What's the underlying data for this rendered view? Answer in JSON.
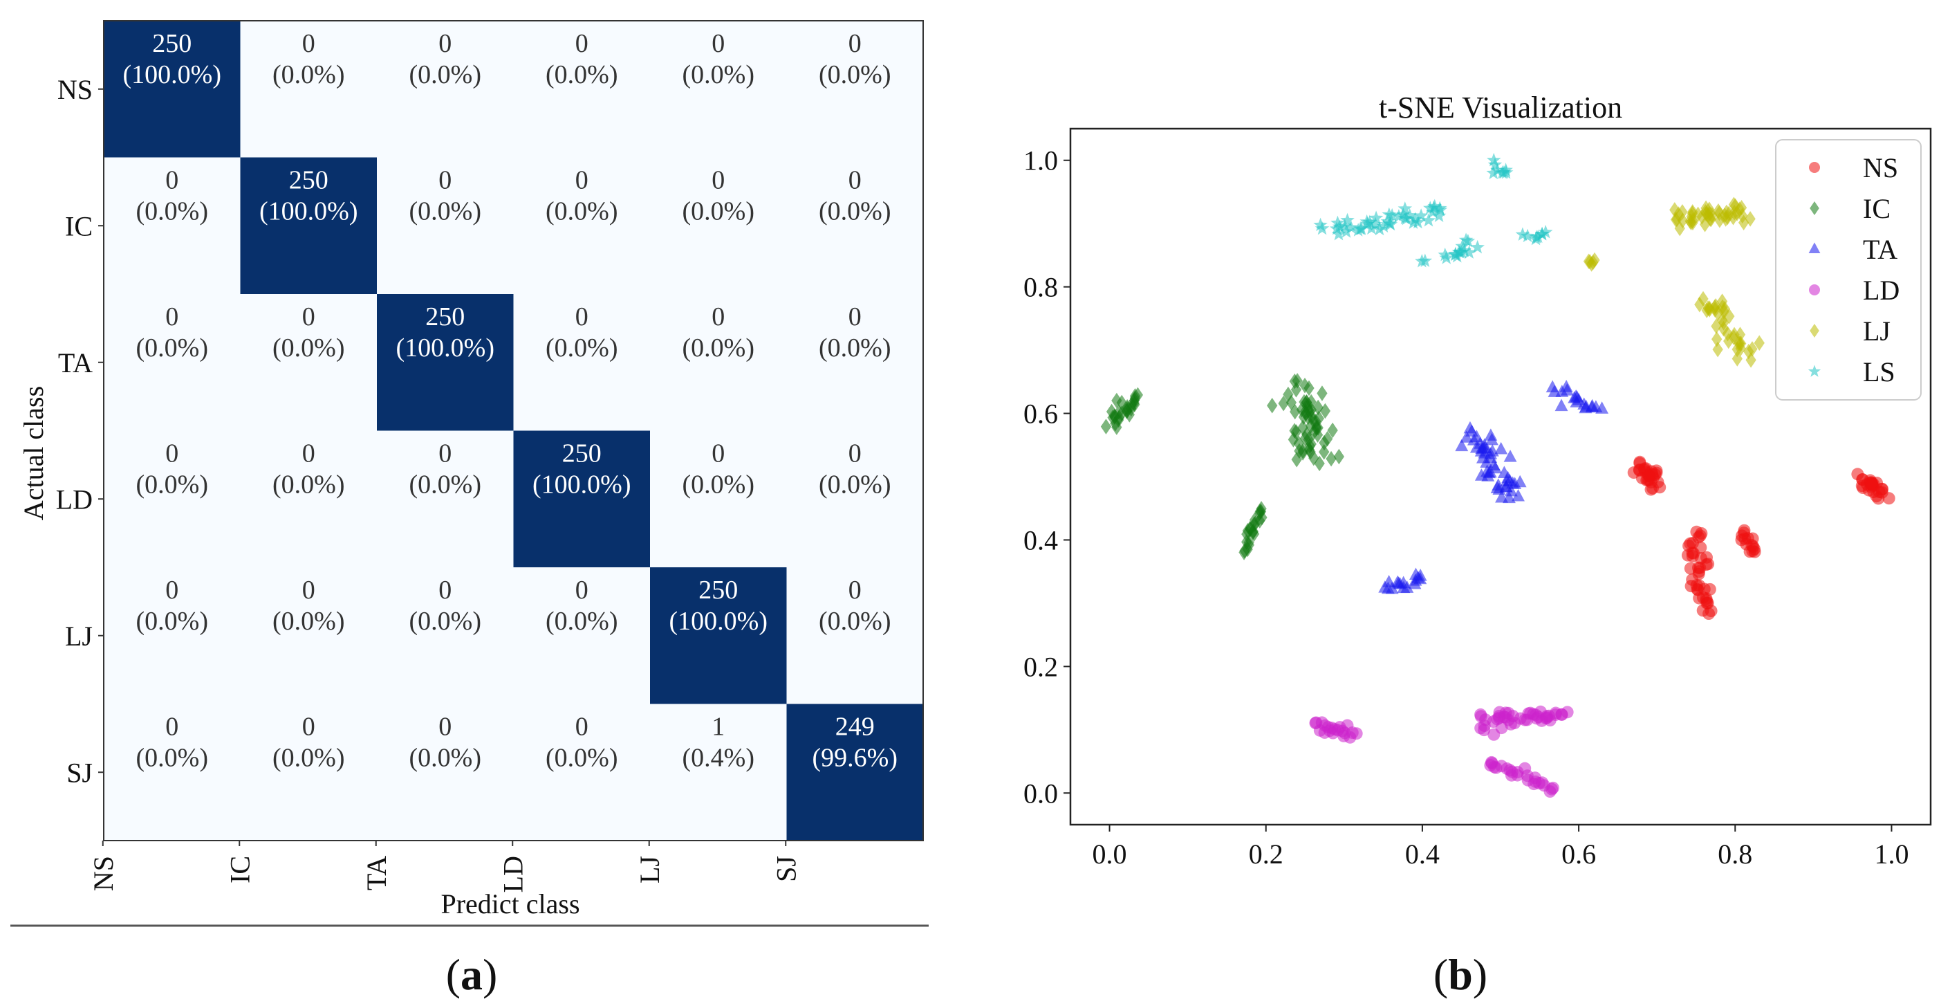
{
  "chart_data": [
    {
      "type": "heatmap",
      "panel_label": "a",
      "title": "",
      "xlabel": "Predict class",
      "ylabel": "Actual class",
      "x_categories": [
        "NS",
        "IC",
        "TA",
        "LD",
        "LJ",
        "SJ"
      ],
      "y_categories": [
        "NS",
        "IC",
        "TA",
        "LD",
        "LJ",
        "SJ"
      ],
      "counts": [
        [
          250,
          0,
          0,
          0,
          0,
          0
        ],
        [
          0,
          250,
          0,
          0,
          0,
          0
        ],
        [
          0,
          0,
          250,
          0,
          0,
          0
        ],
        [
          0,
          0,
          0,
          250,
          0,
          0
        ],
        [
          0,
          0,
          0,
          0,
          250,
          0
        ],
        [
          0,
          0,
          0,
          0,
          1,
          249
        ]
      ],
      "percents": [
        [
          "(100.0%)",
          "(0.0%)",
          "(0.0%)",
          "(0.0%)",
          "(0.0%)",
          "(0.0%)"
        ],
        [
          "(0.0%)",
          "(100.0%)",
          "(0.0%)",
          "(0.0%)",
          "(0.0%)",
          "(0.0%)"
        ],
        [
          "(0.0%)",
          "(0.0%)",
          "(100.0%)",
          "(0.0%)",
          "(0.0%)",
          "(0.0%)"
        ],
        [
          "(0.0%)",
          "(0.0%)",
          "(0.0%)",
          "(100.0%)",
          "(0.0%)",
          "(0.0%)"
        ],
        [
          "(0.0%)",
          "(0.0%)",
          "(0.0%)",
          "(0.0%)",
          "(100.0%)",
          "(0.0%)"
        ],
        [
          "(0.0%)",
          "(0.0%)",
          "(0.0%)",
          "(0.0%)",
          "(0.4%)",
          "(99.6%)"
        ]
      ],
      "colors": {
        "high": "#08306b",
        "low": "#f7fbff",
        "text_on_high": "#ffffff",
        "text_on_low": "#333333"
      }
    },
    {
      "type": "scatter",
      "panel_label": "b",
      "title": "t-SNE Visualization",
      "xlabel": "",
      "ylabel": "",
      "xlim": [
        -0.05,
        1.05
      ],
      "ylim": [
        -0.05,
        1.05
      ],
      "xticks": [
        0.0,
        0.2,
        0.4,
        0.6,
        0.8,
        1.0
      ],
      "yticks": [
        0.0,
        0.2,
        0.4,
        0.6,
        0.8,
        1.0
      ],
      "xtick_labels": [
        "0.0",
        "0.2",
        "0.4",
        "0.6",
        "0.8",
        "1.0"
      ],
      "ytick_labels": [
        "0.0",
        "0.2",
        "0.4",
        "0.6",
        "0.8",
        "1.0"
      ],
      "legend_position": "top-right",
      "series": [
        {
          "name": "NS",
          "color": "#ee1111",
          "marker": "circle",
          "clusters": [
            {
              "from": [
                0.68,
                0.515
              ],
              "to": [
                0.7,
                0.49
              ],
              "spread": 0.012,
              "n": 26
            },
            {
              "from": [
                0.75,
                0.41
              ],
              "to": [
                0.76,
                0.285
              ],
              "spread": 0.012,
              "n": 38
            },
            {
              "from": [
                0.81,
                0.41
              ],
              "to": [
                0.825,
                0.38
              ],
              "spread": 0.008,
              "n": 14
            },
            {
              "from": [
                0.96,
                0.495
              ],
              "to": [
                0.99,
                0.47
              ],
              "spread": 0.011,
              "n": 26
            }
          ]
        },
        {
          "name": "IC",
          "color": "#137a13",
          "marker": "diamond",
          "clusters": [
            {
              "from": [
                0.005,
                0.585
              ],
              "to": [
                0.03,
                0.625
              ],
              "spread": 0.011,
              "n": 26
            },
            {
              "from": [
                0.17,
                0.385
              ],
              "to": [
                0.195,
                0.45
              ],
              "spread": 0.009,
              "n": 22
            },
            {
              "from": [
                0.25,
                0.64
              ],
              "to": [
                0.26,
                0.53
              ],
              "spread": 0.024,
              "n": 60
            }
          ]
        },
        {
          "name": "TA",
          "color": "#1a1aee",
          "marker": "triangle",
          "clusters": [
            {
              "from": [
                0.46,
                0.57
              ],
              "to": [
                0.52,
                0.47
              ],
              "spread": 0.017,
              "n": 46
            },
            {
              "from": [
                0.57,
                0.635
              ],
              "to": [
                0.625,
                0.605
              ],
              "spread": 0.009,
              "n": 18
            },
            {
              "from": [
                0.355,
                0.325
              ],
              "to": [
                0.4,
                0.34
              ],
              "spread": 0.007,
              "n": 16
            }
          ]
        },
        {
          "name": "LD",
          "color": "#cc22cc",
          "marker": "circle",
          "clusters": [
            {
              "from": [
                0.265,
                0.105
              ],
              "to": [
                0.31,
                0.095
              ],
              "spread": 0.008,
              "n": 20
            },
            {
              "from": [
                0.47,
                0.11
              ],
              "to": [
                0.58,
                0.125
              ],
              "spread": 0.013,
              "n": 42
            },
            {
              "from": [
                0.485,
                0.05
              ],
              "to": [
                0.57,
                0.005
              ],
              "spread": 0.008,
              "n": 24
            }
          ]
        },
        {
          "name": "LJ",
          "color": "#bbbb00",
          "marker": "diamond",
          "clusters": [
            {
              "from": [
                0.72,
                0.905
              ],
              "to": [
                0.815,
                0.915
              ],
              "spread": 0.014,
              "n": 44
            },
            {
              "from": [
                0.76,
                0.78
              ],
              "to": [
                0.82,
                0.69
              ],
              "spread": 0.016,
              "n": 36
            },
            {
              "from": [
                0.615,
                0.84
              ],
              "to": [
                0.62,
                0.84
              ],
              "spread": 0.004,
              "n": 5
            }
          ]
        },
        {
          "name": "LS",
          "color": "#22c4c4",
          "marker": "star",
          "clusters": [
            {
              "from": [
                0.28,
                0.89
              ],
              "to": [
                0.43,
                0.92
              ],
              "spread": 0.011,
              "n": 44
            },
            {
              "from": [
                0.43,
                0.845
              ],
              "to": [
                0.465,
                0.87
              ],
              "spread": 0.009,
              "n": 14
            },
            {
              "from": [
                0.49,
                0.995
              ],
              "to": [
                0.51,
                0.98
              ],
              "spread": 0.006,
              "n": 8
            },
            {
              "from": [
                0.53,
                0.88
              ],
              "to": [
                0.56,
                0.88
              ],
              "spread": 0.005,
              "n": 8
            },
            {
              "from": [
                0.4,
                0.84
              ],
              "to": [
                0.4,
                0.84
              ],
              "spread": 0.002,
              "n": 2
            }
          ]
        }
      ]
    }
  ]
}
